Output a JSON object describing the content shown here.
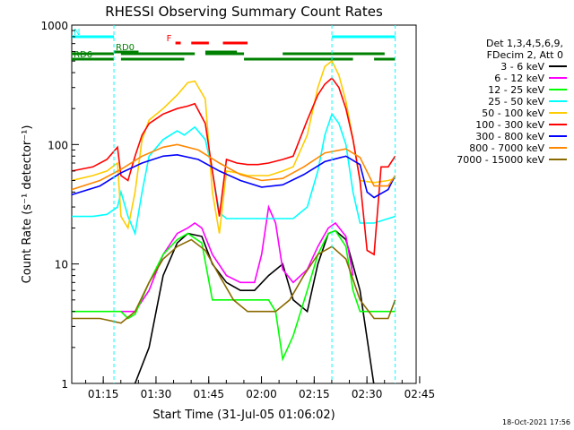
{
  "chart_data": {
    "type": "line",
    "title": "RHESSI Observing Summary Count Rates",
    "xlabel": "Start Time (31-Jul-05 01:06:02)",
    "ylabel": "Count Rate (s⁻¹ detector⁻¹)",
    "y_scale": "log",
    "ylim": [
      1,
      1000
    ],
    "xlim": [
      "01:06:02",
      "02:44:00"
    ],
    "x_ticks": [
      "01:15",
      "01:30",
      "01:45",
      "02:00",
      "02:15",
      "02:30",
      "02:45"
    ],
    "y_ticks": [
      "1",
      "10",
      "100",
      "1000"
    ],
    "timestamp": "18-Oct-2021 17:56",
    "legend": {
      "placement": "right",
      "header": [
        "Det 1,3,4,5,6,9,",
        "FDecim 2, Att 0"
      ]
    },
    "series": [
      {
        "name": "3 - 6 keV",
        "color": "#000000",
        "t": [
          0,
          14,
          18,
          22,
          26,
          30,
          33,
          37,
          40,
          44,
          48,
          52,
          56,
          60,
          63,
          67,
          70,
          73,
          75,
          78,
          82,
          86,
          90,
          92
        ],
        "values": [
          0,
          0,
          1,
          2,
          8,
          15,
          18,
          17,
          10,
          7,
          6,
          6,
          8,
          10,
          5,
          4,
          10,
          18,
          19,
          16,
          6,
          0,
          0,
          0
        ]
      },
      {
        "name": "6 - 12 keV",
        "color": "#ff00ff",
        "t": [
          14,
          18,
          22,
          26,
          30,
          33,
          35,
          37,
          40,
          44,
          48,
          52,
          54,
          56,
          58,
          60,
          63,
          67,
          70,
          73,
          75,
          78,
          80
        ],
        "values": [
          4,
          4,
          6,
          12,
          18,
          20,
          22,
          20,
          12,
          8,
          7,
          7,
          12,
          30,
          22,
          9,
          7,
          9,
          14,
          20,
          22,
          17,
          8
        ]
      },
      {
        "name": "12 - 25 keV",
        "color": "#00ff00",
        "t": [
          0,
          14,
          16,
          18,
          22,
          26,
          30,
          33,
          37,
          40,
          44,
          48,
          52,
          56,
          58,
          60,
          63,
          67,
          70,
          73,
          75,
          78,
          80,
          82,
          86,
          90,
          92
        ],
        "values": [
          4,
          4,
          3.5,
          3.8,
          7,
          12,
          16,
          18,
          15,
          5,
          5,
          5,
          5,
          5,
          4,
          1.6,
          2.5,
          6,
          12,
          18,
          19,
          14,
          6,
          4,
          4,
          4,
          4
        ]
      },
      {
        "name": "25 - 50 keV",
        "color": "#00ffff",
        "t": [
          0,
          6,
          10,
          13,
          14,
          16,
          18,
          20,
          22,
          26,
          30,
          32,
          35,
          38,
          40,
          42,
          44,
          47,
          50,
          52,
          56,
          60,
          63,
          67,
          70,
          72,
          74,
          76,
          78,
          80,
          82,
          86,
          90,
          92
        ],
        "values": [
          25,
          25,
          26,
          30,
          40,
          25,
          18,
          40,
          80,
          110,
          130,
          120,
          140,
          110,
          60,
          27,
          24,
          24,
          24,
          24,
          24,
          24,
          24,
          30,
          60,
          120,
          180,
          150,
          100,
          40,
          22,
          22,
          24,
          25
        ]
      },
      {
        "name": "50 - 100 keV",
        "color": "#ffcc00",
        "t": [
          0,
          6,
          10,
          13,
          14,
          16,
          18,
          20,
          22,
          26,
          30,
          33,
          35,
          38,
          40,
          42,
          44,
          47,
          50,
          53,
          56,
          60,
          63,
          67,
          70,
          72,
          74,
          76,
          78,
          80,
          82,
          86,
          90,
          92
        ],
        "values": [
          50,
          55,
          60,
          70,
          25,
          20,
          40,
          110,
          160,
          200,
          260,
          330,
          340,
          240,
          40,
          18,
          60,
          58,
          55,
          55,
          55,
          60,
          65,
          120,
          300,
          450,
          500,
          380,
          230,
          110,
          50,
          48,
          50,
          52
        ]
      },
      {
        "name": "100 - 300 keV",
        "color": "#ff0000",
        "t": [
          0,
          6,
          10,
          13,
          14,
          16,
          18,
          20,
          22,
          26,
          30,
          33,
          35,
          38,
          40,
          42,
          44,
          47,
          50,
          53,
          56,
          60,
          63,
          67,
          70,
          72,
          74,
          76,
          78,
          80,
          82,
          84,
          86,
          88,
          90,
          92
        ],
        "values": [
          60,
          65,
          75,
          95,
          55,
          50,
          80,
          120,
          150,
          180,
          200,
          210,
          220,
          150,
          60,
          25,
          75,
          70,
          68,
          68,
          70,
          75,
          80,
          160,
          260,
          320,
          360,
          300,
          200,
          110,
          50,
          13,
          12,
          65,
          65,
          80
        ]
      },
      {
        "name": "300 - 800 keV",
        "color": "#0000ff",
        "t": [
          0,
          8,
          14,
          20,
          26,
          30,
          36,
          42,
          48,
          54,
          60,
          66,
          72,
          78,
          82,
          84,
          86,
          90,
          92
        ],
        "values": [
          38,
          45,
          58,
          70,
          80,
          82,
          75,
          60,
          50,
          44,
          46,
          56,
          72,
          80,
          68,
          40,
          36,
          42,
          55
        ]
      },
      {
        "name": "800 - 7000 keV",
        "color": "#ff8800",
        "t": [
          0,
          8,
          14,
          20,
          26,
          30,
          36,
          42,
          48,
          54,
          60,
          66,
          72,
          78,
          82,
          86,
          90,
          92
        ],
        "values": [
          42,
          50,
          62,
          80,
          95,
          100,
          90,
          70,
          56,
          50,
          52,
          65,
          85,
          92,
          78,
          45,
          45,
          55
        ]
      },
      {
        "name": "7000 - 15000 keV",
        "color": "#8a6a00",
        "t": [
          0,
          8,
          14,
          18,
          22,
          26,
          30,
          34,
          38,
          42,
          46,
          50,
          54,
          58,
          62,
          66,
          70,
          74,
          78,
          82,
          86,
          90,
          92
        ],
        "values": [
          3.5,
          3.5,
          3.2,
          4,
          7,
          11,
          14,
          16,
          13,
          8,
          5,
          4,
          4,
          4,
          5,
          8,
          12,
          14,
          11,
          5,
          3.5,
          3.5,
          5
        ]
      }
    ],
    "annotations": [
      {
        "label": "N",
        "color": "#00ffff",
        "segments": [
          [
            0,
            12
          ],
          [
            74,
            92
          ]
        ]
      },
      {
        "label": "F",
        "color": "#ff0000",
        "segments": [
          [
            29.5,
            31
          ],
          [
            34,
            39
          ],
          [
            43,
            50
          ]
        ]
      },
      {
        "label": "RD0",
        "color": "#008000",
        "segments": [
          [
            12,
            19
          ],
          [
            38,
            47
          ]
        ]
      },
      {
        "label": "RD6",
        "color": "#008000",
        "segments": [
          [
            0,
            12
          ],
          [
            14,
            32
          ],
          [
            49,
            80
          ],
          [
            86,
            92
          ]
        ]
      },
      {
        "label": "",
        "color": "#008000",
        "segments": [
          [
            0,
            12
          ],
          [
            14,
            35
          ],
          [
            38,
            49
          ],
          [
            60,
            74
          ],
          [
            74,
            89
          ]
        ]
      }
    ]
  }
}
